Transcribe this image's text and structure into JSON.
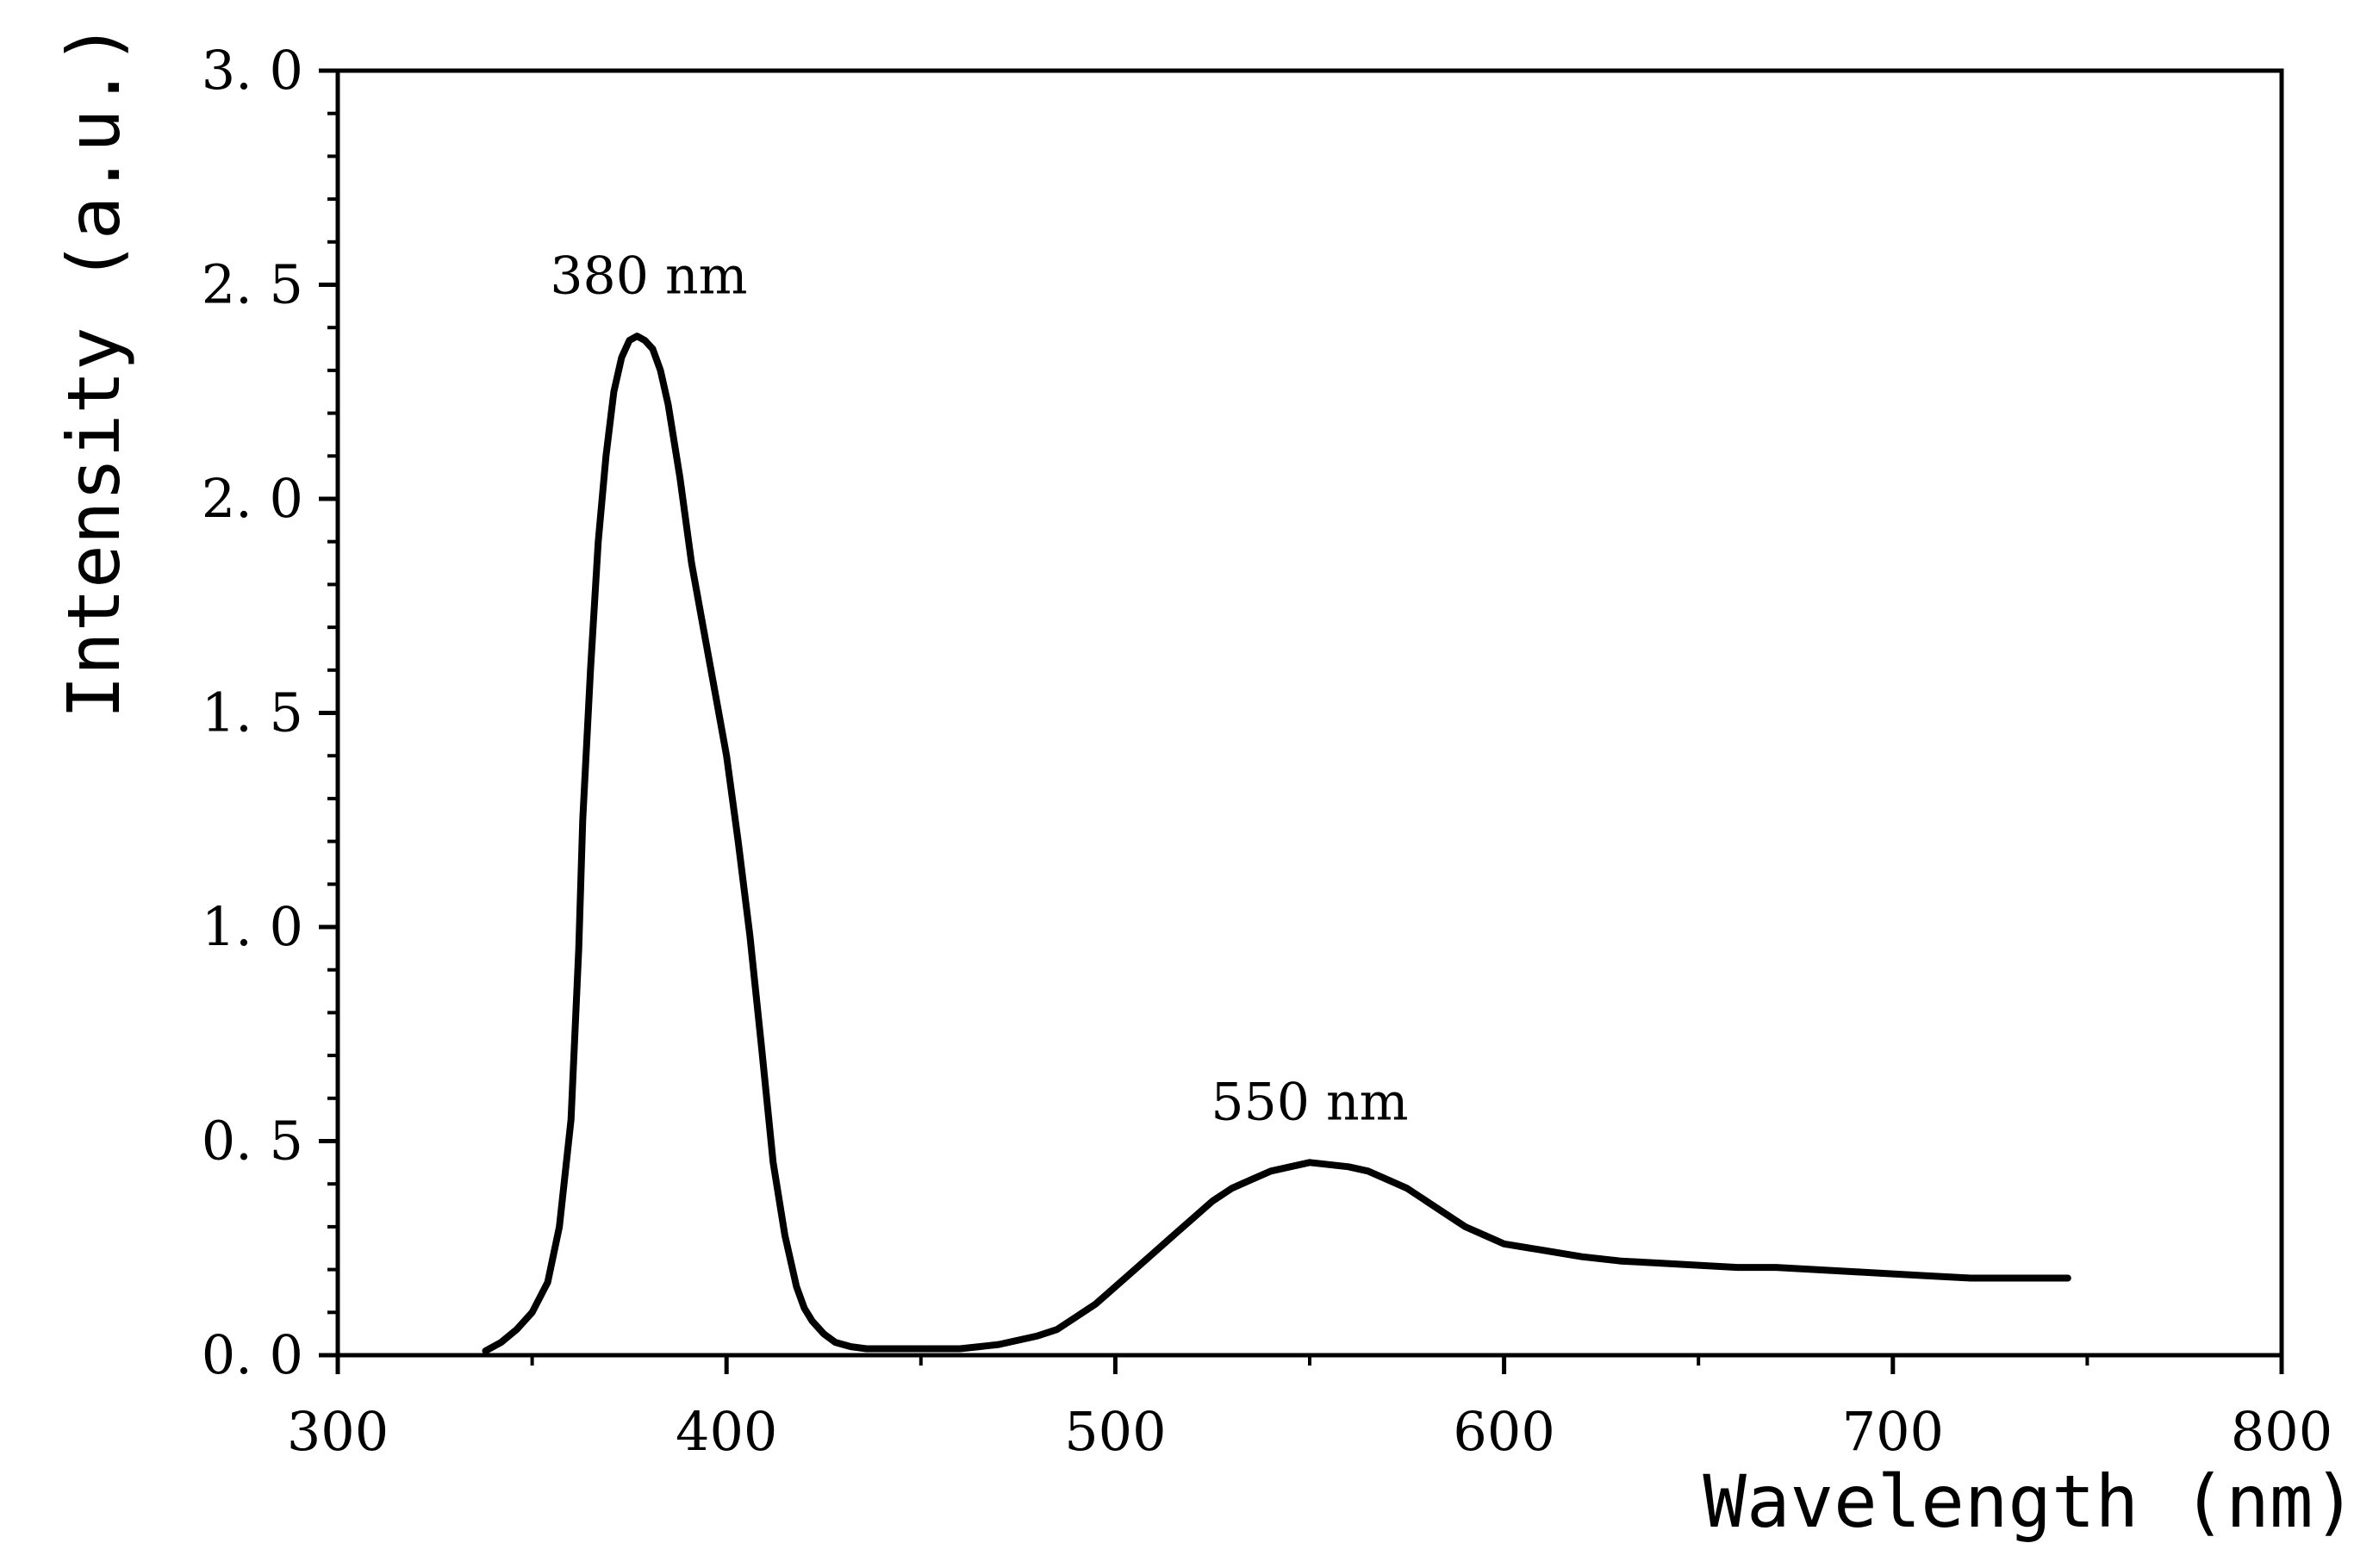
{
  "chart_data": {
    "type": "line",
    "title": "",
    "xlabel": "Wavelength (nm)",
    "ylabel": "Intensity (a.u.)",
    "xlim": [
      300,
      800
    ],
    "ylim": [
      0.0,
      3.0
    ],
    "xticks": [
      300,
      400,
      500,
      600,
      700,
      800
    ],
    "xtick_labels": [
      "300",
      "400",
      "500",
      "600",
      "700",
      "800"
    ],
    "yticks": [
      0.0,
      0.5,
      1.0,
      1.5,
      2.0,
      2.5,
      3.0
    ],
    "ytick_labels": [
      "0. 0",
      "0. 5",
      "1. 0",
      "1. 5",
      "2. 0",
      "2. 5",
      "3. 0"
    ],
    "grid": false,
    "annotations": [
      {
        "text": "380 nm",
        "x": 380,
        "y": 2.48
      },
      {
        "text": "550 nm",
        "x": 550,
        "y": 0.55
      }
    ],
    "series": [
      {
        "name": "Intensity",
        "color": "#000000",
        "x": [
          338,
          342,
          346,
          350,
          354,
          357,
          360,
          362,
          363,
          365,
          367,
          369,
          371,
          373,
          375,
          377,
          379,
          381,
          383,
          385,
          388,
          391,
          394,
          397,
          400,
          403,
          406,
          409,
          412,
          415,
          418,
          420,
          422,
          425,
          428,
          432,
          436,
          440,
          445,
          450,
          455,
          460,
          465,
          470,
          475,
          480,
          485,
          490,
          495,
          500,
          505,
          510,
          515,
          520,
          525,
          530,
          535,
          540,
          545,
          550,
          555,
          560,
          565,
          570,
          575,
          580,
          585,
          590,
          595,
          600,
          610,
          620,
          630,
          640,
          650,
          660,
          670,
          680,
          690,
          700,
          710,
          720,
          730,
          745
        ],
        "values": [
          0.01,
          0.03,
          0.06,
          0.1,
          0.17,
          0.3,
          0.55,
          0.95,
          1.25,
          1.6,
          1.9,
          2.1,
          2.25,
          2.33,
          2.37,
          2.38,
          2.37,
          2.35,
          2.3,
          2.22,
          2.05,
          1.85,
          1.7,
          1.55,
          1.4,
          1.2,
          0.98,
          0.72,
          0.45,
          0.28,
          0.16,
          0.11,
          0.08,
          0.05,
          0.03,
          0.02,
          0.015,
          0.015,
          0.015,
          0.015,
          0.015,
          0.015,
          0.02,
          0.025,
          0.035,
          0.045,
          0.06,
          0.09,
          0.12,
          0.16,
          0.2,
          0.24,
          0.28,
          0.32,
          0.36,
          0.39,
          0.41,
          0.43,
          0.44,
          0.45,
          0.445,
          0.44,
          0.43,
          0.41,
          0.39,
          0.36,
          0.33,
          0.3,
          0.28,
          0.26,
          0.245,
          0.23,
          0.22,
          0.215,
          0.21,
          0.205,
          0.205,
          0.2,
          0.195,
          0.19,
          0.185,
          0.18,
          0.18,
          0.18
        ]
      }
    ]
  }
}
